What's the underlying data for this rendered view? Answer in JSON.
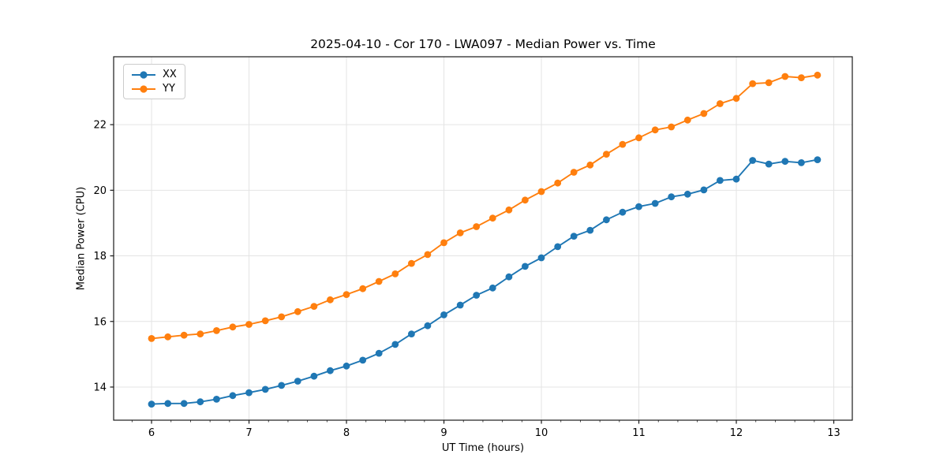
{
  "chart_data": {
    "type": "line",
    "title": "2025-04-10 - Cor 170 - LWA097 - Median Power vs. Time",
    "xlabel": "UT Time (hours)",
    "ylabel": "Median Power (CPU)",
    "xlim": [
      5.611,
      13.19
    ],
    "ylim": [
      12.99,
      24.07
    ],
    "x_major_ticks": [
      6,
      7,
      8,
      9,
      10,
      11,
      12,
      13
    ],
    "x_minor_step": 0.2,
    "y_major_ticks": [
      14,
      16,
      18,
      20,
      22
    ],
    "grid": true,
    "legend_position": "upper-left",
    "style": {
      "grid_color": "#e4e4e4",
      "spine_color": "#1a1a1a",
      "text_color": "#000000",
      "background": "#ffffff"
    },
    "x": [
      6.0,
      6.167,
      6.333,
      6.5,
      6.667,
      6.833,
      7.0,
      7.167,
      7.333,
      7.5,
      7.667,
      7.833,
      8.0,
      8.167,
      8.333,
      8.5,
      8.667,
      8.833,
      9.0,
      9.167,
      9.333,
      9.5,
      9.667,
      9.833,
      10.0,
      10.167,
      10.333,
      10.5,
      10.667,
      10.833,
      11.0,
      11.167,
      11.333,
      11.5,
      11.667,
      11.833,
      12.0,
      12.167,
      12.333,
      12.5,
      12.667,
      12.833
    ],
    "series": [
      {
        "name": "XX",
        "color": "#1f77b4",
        "values": [
          13.48,
          13.5,
          13.5,
          13.55,
          13.63,
          13.74,
          13.83,
          13.93,
          14.05,
          14.18,
          14.33,
          14.5,
          14.64,
          14.82,
          15.03,
          15.3,
          15.62,
          15.87,
          16.2,
          16.5,
          16.8,
          17.02,
          17.36,
          17.68,
          17.94,
          18.28,
          18.6,
          18.78,
          19.1,
          19.33,
          19.5,
          19.6,
          19.8,
          19.88,
          20.01,
          20.3,
          20.34,
          20.91,
          20.8,
          20.88,
          20.84,
          20.93
        ]
      },
      {
        "name": "YY",
        "color": "#ff7f0e",
        "values": [
          15.48,
          15.53,
          15.58,
          15.62,
          15.72,
          15.83,
          15.91,
          16.02,
          16.14,
          16.3,
          16.46,
          16.66,
          16.82,
          17.0,
          17.22,
          17.45,
          17.77,
          18.04,
          18.4,
          18.7,
          18.89,
          19.15,
          19.4,
          19.7,
          19.96,
          20.22,
          20.55,
          20.77,
          21.1,
          21.4,
          21.6,
          21.84,
          21.93,
          22.14,
          22.34,
          22.64,
          22.8,
          23.25,
          23.28,
          23.47,
          23.43,
          23.51
        ]
      }
    ]
  }
}
